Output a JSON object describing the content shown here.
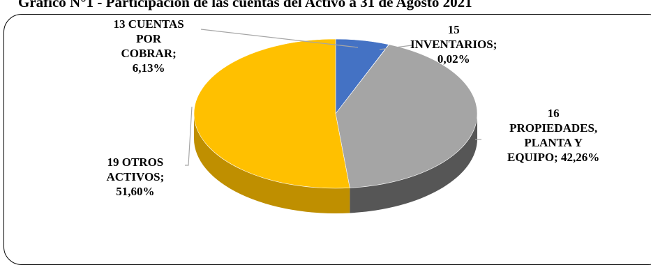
{
  "chart_data": {
    "type": "pie",
    "title": "Gráfico N°1 - Participación de las cuentas del Activo a 31 de Agosto 2021",
    "categories": [
      "13 CUENTAS POR COBRAR",
      "15 INVENTARIOS",
      "16 PROPIEDADES, PLANTA Y EQUIPO",
      "19 OTROS ACTIVOS"
    ],
    "values": [
      6.13,
      0.02,
      42.26,
      51.6
    ],
    "data_labels": [
      [
        "13 CUENTAS",
        "POR",
        "COBRAR;",
        "6,13%"
      ],
      [
        "15",
        "INVENTARIOS;",
        "0,02%"
      ],
      [
        "16",
        "PROPIEDADES,",
        "PLANTA Y",
        "EQUIPO; 42,26%"
      ],
      [
        "19 OTROS",
        "ACTIVOS;",
        "51,60%"
      ]
    ],
    "colors": [
      "#4472C4",
      "#ED7D31",
      "#A5A5A5",
      "#FFC000"
    ],
    "style": "3d-pie",
    "legend": "none"
  }
}
